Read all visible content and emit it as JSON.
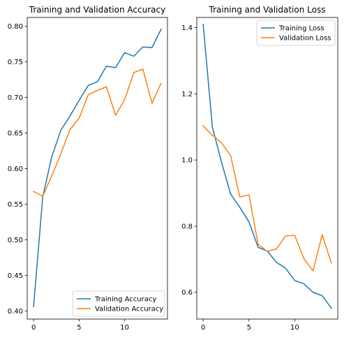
{
  "chart_data": [
    {
      "type": "line",
      "title": "Training and Validation Accuracy",
      "xlabel": "",
      "ylabel": "",
      "xlim": [
        -0.7,
        14.7
      ],
      "ylim": [
        0.3885,
        0.8125
      ],
      "xticks": [
        0,
        5,
        10
      ],
      "yticks": [
        0.4,
        0.45,
        0.5,
        0.55,
        0.6,
        0.65,
        0.7,
        0.75,
        0.8
      ],
      "ytick_labels": [
        "0.40",
        "0.45",
        "0.50",
        "0.55",
        "0.60",
        "0.65",
        "0.70",
        "0.75",
        "0.80"
      ],
      "grid": false,
      "legend": "lower right",
      "x": [
        0,
        1,
        2,
        3,
        4,
        5,
        6,
        7,
        8,
        9,
        10,
        11,
        12,
        13,
        14
      ],
      "series": [
        {
          "name": "Training Accuracy",
          "color": "#1f77b4",
          "values": [
            0.406,
            0.56,
            0.617,
            0.654,
            0.674,
            0.696,
            0.717,
            0.722,
            0.744,
            0.742,
            0.763,
            0.758,
            0.771,
            0.77,
            0.796
          ]
        },
        {
          "name": "Validation Accuracy",
          "color": "#ff7f0e",
          "values": [
            0.568,
            0.561,
            0.59,
            0.621,
            0.655,
            0.671,
            0.704,
            0.71,
            0.715,
            0.675,
            0.697,
            0.735,
            0.74,
            0.692,
            0.72
          ]
        }
      ]
    },
    {
      "type": "line",
      "title": "Training and Validation Loss",
      "xlabel": "",
      "ylabel": "",
      "xlim": [
        -0.7,
        14.7
      ],
      "ylim": [
        0.5193,
        1.4307
      ],
      "xticks": [
        0,
        5,
        10
      ],
      "yticks": [
        0.6,
        0.8,
        1.0,
        1.2,
        1.4
      ],
      "ytick_labels": [
        "0.6",
        "0.8",
        "1.0",
        "1.2",
        "1.4"
      ],
      "grid": false,
      "legend": "upper right",
      "x": [
        0,
        1,
        2,
        3,
        4,
        5,
        6,
        7,
        8,
        9,
        10,
        11,
        12,
        13,
        14
      ],
      "series": [
        {
          "name": "Training Loss",
          "color": "#1f77b4",
          "values": [
            1.41,
            1.1,
            0.993,
            0.897,
            0.857,
            0.813,
            0.736,
            0.725,
            0.691,
            0.673,
            0.636,
            0.626,
            0.6,
            0.59,
            0.552
          ]
        },
        {
          "name": "Validation Loss",
          "color": "#ff7f0e",
          "values": [
            1.103,
            1.075,
            1.052,
            1.013,
            0.888,
            0.895,
            0.745,
            0.724,
            0.731,
            0.771,
            0.772,
            0.702,
            0.665,
            0.774,
            0.689
          ]
        }
      ]
    }
  ]
}
